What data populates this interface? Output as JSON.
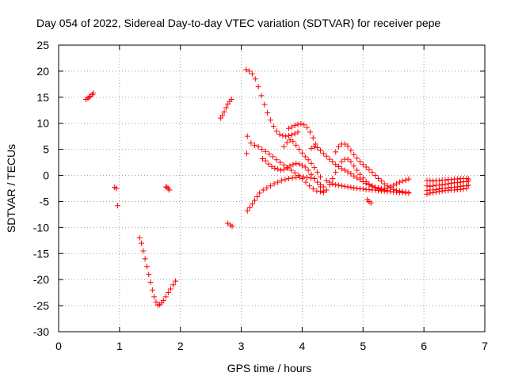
{
  "chart_data": {
    "type": "scatter",
    "title": "Day 054 of 2022, Sidereal Day-to-day VTEC variation (SDTVAR) for receiver pepe",
    "xlabel": "GPS time / hours",
    "ylabel": "SDTVAR / TECUs",
    "xlim": [
      0,
      7
    ],
    "ylim": [
      -30,
      25
    ],
    "xticks": [
      "0",
      "1",
      "2",
      "3",
      "4",
      "5",
      "6",
      "7"
    ],
    "yticks": [
      "25",
      "20",
      "15",
      "10",
      "5",
      "0",
      "-5",
      "-10",
      "-15",
      "-20",
      "-25",
      "-30"
    ],
    "grid": true,
    "marker": "+",
    "color": "#ff0000",
    "series": [
      {
        "x": [
          0.45,
          0.48,
          0.5,
          0.52,
          0.55,
          0.57
        ],
        "y": [
          14.6,
          14.8,
          15.0,
          15.2,
          15.5,
          15.8
        ]
      },
      {
        "x": [
          0.92,
          0.95
        ],
        "y": [
          -2.3,
          -2.5
        ]
      },
      {
        "x": [
          0.97
        ],
        "y": [
          -5.8
        ]
      },
      {
        "x": [
          1.33,
          1.36,
          1.39,
          1.42,
          1.45,
          1.48,
          1.51,
          1.54,
          1.57,
          1.6,
          1.63,
          1.66,
          1.69
        ],
        "y": [
          -12.0,
          -13.0,
          -14.5,
          -16.0,
          -17.5,
          -19.0,
          -20.5,
          -22.0,
          -23.3,
          -24.3,
          -24.9,
          -24.8,
          -24.5
        ]
      },
      {
        "x": [
          1.72,
          1.76,
          1.8,
          1.84,
          1.88,
          1.92
        ],
        "y": [
          -24.0,
          -23.3,
          -22.5,
          -21.8,
          -21.0,
          -20.3
        ]
      },
      {
        "x": [
          1.76,
          1.78,
          1.8,
          1.82
        ],
        "y": [
          -2.2,
          -2.3,
          -2.5,
          -2.8
        ]
      },
      {
        "x": [
          2.66,
          2.69,
          2.72,
          2.75,
          2.78,
          2.81,
          2.84
        ],
        "y": [
          11.0,
          11.5,
          12.2,
          13.0,
          13.7,
          14.2,
          14.6
        ]
      },
      {
        "x": [
          2.78,
          2.82,
          2.85
        ],
        "y": [
          -9.2,
          -9.5,
          -9.8
        ]
      },
      {
        "x": [
          3.08,
          3.13,
          3.18,
          3.23,
          3.28,
          3.33,
          3.38,
          3.43,
          3.48,
          3.53,
          3.58,
          3.63,
          3.68,
          3.73,
          3.78,
          3.83,
          3.88,
          3.93
        ],
        "y": [
          20.3,
          20.0,
          19.5,
          18.5,
          17.0,
          15.3,
          13.6,
          12.0,
          10.6,
          9.4,
          8.5,
          7.9,
          7.6,
          7.5,
          7.6,
          7.8,
          8.0,
          8.3
        ]
      },
      {
        "x": [
          3.78,
          3.83,
          3.88,
          3.93,
          3.98,
          4.03,
          4.08,
          4.13,
          4.18,
          4.22
        ],
        "y": [
          9.0,
          9.3,
          9.6,
          9.8,
          9.9,
          9.7,
          9.2,
          8.3,
          7.2,
          6.0
        ]
      },
      {
        "x": [
          3.09
        ],
        "y": [
          4.2
        ]
      },
      {
        "x": [
          3.1,
          3.16,
          3.22,
          3.28,
          3.34,
          3.4,
          3.46,
          3.52,
          3.58,
          3.64,
          3.7,
          3.76,
          3.82,
          3.88,
          3.94,
          4.0,
          4.06,
          4.12,
          4.18,
          4.24,
          4.3,
          4.35
        ],
        "y": [
          7.5,
          6.2,
          5.8,
          5.5,
          5.0,
          4.6,
          4.1,
          3.6,
          3.0,
          2.5,
          2.0,
          1.5,
          1.0,
          0.5,
          0.0,
          -0.6,
          -1.3,
          -2.0,
          -2.6,
          -3.0,
          -3.1,
          -3.3
        ]
      },
      {
        "x": [
          3.35,
          3.4,
          3.45,
          3.5,
          3.55,
          3.6,
          3.65,
          3.7,
          3.75,
          3.8,
          3.85,
          3.9,
          3.95,
          4.0,
          4.05,
          4.1,
          4.15,
          4.2,
          4.25,
          4.3,
          4.35
        ],
        "y": [
          3.2,
          2.8,
          2.2,
          1.7,
          1.4,
          1.2,
          1.0,
          1.1,
          1.4,
          1.8,
          2.1,
          2.3,
          2.2,
          1.9,
          1.6,
          1.0,
          0.2,
          -0.6,
          -1.3,
          -1.8,
          -2.2
        ]
      },
      {
        "x": [
          3.7,
          3.75,
          3.8,
          3.85,
          3.9,
          3.95,
          4.0,
          4.05,
          4.1,
          4.15,
          4.2,
          4.25,
          4.3
        ],
        "y": [
          5.5,
          6.3,
          6.8,
          6.5,
          5.8,
          5.0,
          4.3,
          3.6,
          3.0,
          2.3,
          1.5,
          0.6,
          -0.3
        ]
      },
      {
        "x": [
          4.15,
          4.2,
          4.25,
          4.3,
          4.35,
          4.4,
          4.45,
          4.5,
          4.55,
          4.6,
          4.65,
          4.7,
          4.75,
          4.8,
          4.85,
          4.9,
          4.95,
          5.0,
          5.05,
          5.1,
          5.15,
          5.2,
          5.25,
          5.3,
          5.35,
          5.4,
          5.45,
          5.5,
          5.55,
          5.6,
          5.65,
          5.7,
          5.75
        ],
        "y": [
          5.2,
          5.5,
          5.3,
          4.8,
          4.2,
          3.7,
          3.1,
          2.6,
          2.1,
          1.7,
          1.3,
          1.0,
          0.7,
          0.3,
          -0.1,
          -0.5,
          -0.8,
          -1.2,
          -1.5,
          -1.8,
          -2.0,
          -2.3,
          -2.4,
          -2.5,
          -2.5,
          -2.4,
          -2.2,
          -1.9,
          -1.6,
          -1.3,
          -1.1,
          -0.9,
          -0.7
        ]
      },
      {
        "x": [
          4.55,
          4.6,
          4.65,
          4.7,
          4.75,
          4.8,
          4.85,
          4.9,
          4.95,
          5.0,
          5.05,
          5.1,
          5.15,
          5.2,
          5.25,
          5.3,
          5.35,
          5.4,
          5.45,
          5.5,
          5.55,
          5.6,
          5.65,
          5.7,
          5.75
        ],
        "y": [
          4.5,
          5.5,
          6.0,
          6.0,
          5.6,
          4.8,
          4.0,
          3.3,
          2.6,
          2.1,
          1.6,
          1.1,
          0.6,
          0.0,
          -0.6,
          -1.1,
          -1.6,
          -2.0,
          -2.4,
          -2.7,
          -2.9,
          -3.0,
          -3.1,
          -3.2,
          -3.3
        ]
      },
      {
        "x": [
          4.3,
          4.35,
          4.4,
          4.45,
          4.5,
          4.55,
          4.6,
          4.65,
          4.7,
          4.75,
          4.8,
          4.85,
          4.9,
          4.95,
          5.0,
          5.05,
          5.1,
          5.15,
          5.2,
          5.25,
          5.3,
          5.35,
          5.4
        ],
        "y": [
          -2.2,
          -3.0,
          -2.8,
          -1.8,
          -0.6,
          0.6,
          1.7,
          2.6,
          3.1,
          3.1,
          2.6,
          1.8,
          1.0,
          0.2,
          -0.5,
          -1.2,
          -1.7,
          -2.1,
          -2.4,
          -2.6,
          -2.7,
          -2.8,
          -2.9
        ]
      },
      {
        "x": [
          4.4,
          4.45,
          4.5,
          4.55,
          4.6,
          4.65,
          4.7,
          4.75,
          4.8,
          4.85,
          4.9,
          4.95,
          5.0,
          5.05,
          5.1,
          5.15,
          5.2,
          5.25,
          5.3,
          5.35,
          5.4,
          5.45,
          5.5,
          5.55,
          5.6,
          5.65,
          5.7,
          5.75
        ],
        "y": [
          -1.0,
          -1.3,
          -1.6,
          -1.8,
          -1.9,
          -2.0,
          -2.1,
          -2.2,
          -2.3,
          -2.4,
          -2.5,
          -2.6,
          -2.6,
          -2.7,
          -2.7,
          -2.8,
          -2.8,
          -2.9,
          -3.0,
          -3.0,
          -3.1,
          -3.1,
          -3.2,
          -3.2,
          -3.3,
          -3.3,
          -3.4,
          -3.4
        ]
      },
      {
        "x": [
          5.07,
          5.1,
          5.13
        ],
        "y": [
          -4.7,
          -5.0,
          -5.3
        ]
      },
      {
        "x": [
          3.1,
          3.14,
          3.18,
          3.22,
          3.26,
          3.3,
          3.36,
          3.42,
          3.48,
          3.54,
          3.6,
          3.66,
          3.72,
          3.78,
          3.84,
          3.9,
          3.96,
          4.02,
          4.08,
          4.14,
          4.2
        ],
        "y": [
          -6.8,
          -6.2,
          -5.5,
          -4.8,
          -4.1,
          -3.4,
          -2.8,
          -2.4,
          -2.0,
          -1.6,
          -1.3,
          -1.0,
          -0.8,
          -0.6,
          -0.5,
          -0.4,
          -0.3,
          -0.3,
          -0.4,
          -0.5,
          -0.6
        ]
      },
      {
        "x": [
          6.05,
          6.1,
          6.15,
          6.2,
          6.25,
          6.3,
          6.35,
          6.4,
          6.45,
          6.5,
          6.55,
          6.6,
          6.65,
          6.7,
          6.73
        ],
        "y": [
          -1.0,
          -1.0,
          -1.1,
          -1.0,
          -1.0,
          -0.9,
          -0.9,
          -0.8,
          -0.8,
          -0.7,
          -0.7,
          -0.6,
          -0.6,
          -0.6,
          -0.7
        ]
      },
      {
        "x": [
          6.05,
          6.1,
          6.15,
          6.2,
          6.25,
          6.3,
          6.35,
          6.4,
          6.45,
          6.5,
          6.55,
          6.6,
          6.65,
          6.7,
          6.73
        ],
        "y": [
          -2.0,
          -2.1,
          -2.0,
          -1.9,
          -1.9,
          -1.8,
          -1.7,
          -1.6,
          -1.5,
          -1.4,
          -1.4,
          -1.3,
          -1.2,
          -1.2,
          -1.1
        ]
      },
      {
        "x": [
          6.05,
          6.1,
          6.15,
          6.2,
          6.25,
          6.3,
          6.35,
          6.4,
          6.45,
          6.5,
          6.55,
          6.6,
          6.65,
          6.7,
          6.73
        ],
        "y": [
          -2.9,
          -2.8,
          -2.8,
          -2.7,
          -2.6,
          -2.5,
          -2.5,
          -2.4,
          -2.3,
          -2.3,
          -2.2,
          -2.1,
          -2.0,
          -2.0,
          -1.9
        ]
      },
      {
        "x": [
          6.05,
          6.1,
          6.15,
          6.2,
          6.25,
          6.3,
          6.35,
          6.4,
          6.45,
          6.5,
          6.55,
          6.6,
          6.65,
          6.7
        ],
        "y": [
          -3.6,
          -3.4,
          -3.3,
          -3.2,
          -3.1,
          -3.0,
          -2.9,
          -2.9,
          -2.8,
          -2.8,
          -2.7,
          -2.7,
          -2.6,
          -2.5
        ]
      }
    ]
  }
}
